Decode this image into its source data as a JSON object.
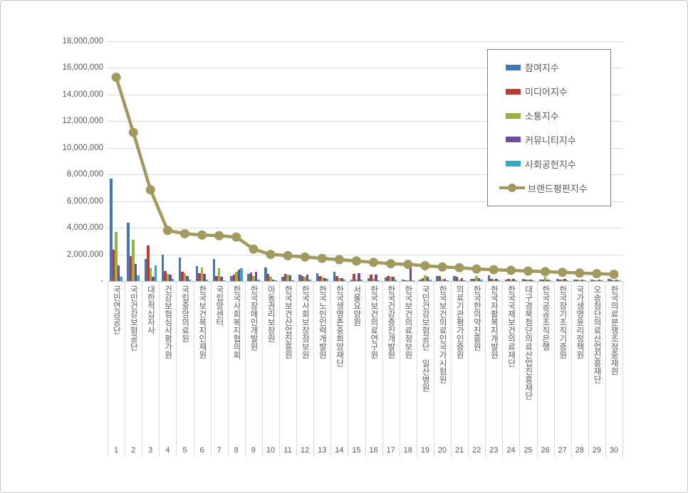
{
  "chart_data": {
    "type": "combo-bar-line",
    "title": "",
    "ranks": [
      "1",
      "2",
      "3",
      "4",
      "5",
      "6",
      "7",
      "8",
      "9",
      "10",
      "11",
      "12",
      "13",
      "14",
      "15",
      "16",
      "17",
      "18",
      "19",
      "20",
      "21",
      "22",
      "23",
      "24",
      "25",
      "26",
      "27",
      "28",
      "29",
      "30"
    ],
    "categories": [
      "국민연금공단",
      "국민건강보험공단",
      "대한적십자사",
      "건강보험심사평가원",
      "국립중앙의료원",
      "한국보건복지인재원",
      "국립암센터",
      "한국사회복지협의회",
      "한국장애인개발원",
      "아동권리보장원",
      "한국보건산업진흥원",
      "한국사회보장정보원",
      "한국노인인력개발원",
      "한국생명존중희망재단",
      "서울요양원",
      "한국보건의료연구원",
      "한국건강증진개발원",
      "한국보건의료정보원",
      "국민건강보험공단 일산병원",
      "한국보건의료인국가시험원",
      "의료기관평가인증원",
      "한국한의약진흥원",
      "한국자활복지개발원",
      "한국국제보건의료재단",
      "대구경북첨단의료산업진흥재단",
      "한국공공조직은행",
      "한국장기조직기증원",
      "국가생명윤리정책원",
      "오송첨단의료산업진흥재단",
      "한국의료분쟁조정중재원"
    ],
    "bar_series": [
      {
        "name": "참여지수",
        "color": "#3d79bc",
        "values": [
          7700000,
          4400000,
          1650000,
          2000000,
          1750000,
          1100000,
          1650000,
          350000,
          550000,
          1000000,
          300000,
          500000,
          600000,
          700000,
          100000,
          200000,
          250000,
          100000,
          100000,
          400000,
          350000,
          150000,
          450000,
          100000,
          150000,
          100000,
          150000,
          100000,
          100000,
          150000
        ]
      },
      {
        "name": "미디어지수",
        "color": "#c03a32",
        "values": [
          2350000,
          1850000,
          2650000,
          750000,
          700000,
          600000,
          350000,
          500000,
          650000,
          550000,
          550000,
          350000,
          400000,
          350000,
          550000,
          500000,
          350000,
          50000,
          200000,
          400000,
          300000,
          150000,
          150000,
          150000,
          100000,
          100000,
          100000,
          100000,
          50000,
          100000
        ]
      },
      {
        "name": "소통지수",
        "color": "#95b43f",
        "values": [
          3700000,
          3100000,
          950000,
          550000,
          600000,
          1000000,
          950000,
          700000,
          350000,
          300000,
          500000,
          300000,
          300000,
          200000,
          100000,
          150000,
          300000,
          50000,
          450000,
          100000,
          100000,
          350000,
          100000,
          100000,
          100000,
          300000,
          100000,
          50000,
          50000,
          50000
        ]
      },
      {
        "name": "커뮤니티지수",
        "color": "#6e4b9e",
        "values": [
          1150000,
          1300000,
          300000,
          500000,
          400000,
          550000,
          300000,
          850000,
          700000,
          100000,
          450000,
          500000,
          200000,
          200000,
          600000,
          500000,
          300000,
          1000000,
          300000,
          150000,
          200000,
          200000,
          150000,
          150000,
          100000,
          100000,
          150000,
          100000,
          100000,
          100000
        ]
      },
      {
        "name": "사회공헌지수",
        "color": "#35a8c8",
        "values": [
          300000,
          450000,
          1200000,
          150000,
          100000,
          100000,
          50000,
          950000,
          100000,
          50000,
          50000,
          100000,
          150000,
          100000,
          100000,
          50000,
          100000,
          50000,
          100000,
          50000,
          50000,
          100000,
          50000,
          50000,
          50000,
          50000,
          50000,
          50000,
          50000,
          50000
        ]
      }
    ],
    "line_series": {
      "name": "브랜드평판지수",
      "color": "#a29a5c",
      "values": [
        15300000,
        11150000,
        6850000,
        3800000,
        3550000,
        3450000,
        3400000,
        3300000,
        2400000,
        2000000,
        1900000,
        1800000,
        1700000,
        1600000,
        1500000,
        1400000,
        1300000,
        1250000,
        1150000,
        1050000,
        1000000,
        900000,
        850000,
        800000,
        750000,
        700000,
        650000,
        600000,
        550000,
        500000
      ]
    },
    "y_axis": {
      "min": 0,
      "max": 18000000,
      "tick_step": 2000000,
      "ticks": [
        {
          "value": 18000000,
          "label": "18,000,000"
        },
        {
          "value": 16000000,
          "label": "16,000,000"
        },
        {
          "value": 14000000,
          "label": "14,000,000"
        },
        {
          "value": 12000000,
          "label": "12,000,000"
        },
        {
          "value": 10000000,
          "label": "10,000,000"
        },
        {
          "value": 8000000,
          "label": "8,000,000"
        },
        {
          "value": 6000000,
          "label": "6,000,000"
        },
        {
          "value": 4000000,
          "label": "4,000,000"
        },
        {
          "value": 2000000,
          "label": "2,000,000"
        }
      ],
      "zero_label": "-"
    },
    "legend_position": "top-right",
    "grid": true,
    "colors": {
      "gridline": "#d9d9d9",
      "axis_line": "#bfbfbf",
      "axis_text": "#595959",
      "legend_border": "#7f7f7f",
      "background": "#ffffff"
    }
  }
}
